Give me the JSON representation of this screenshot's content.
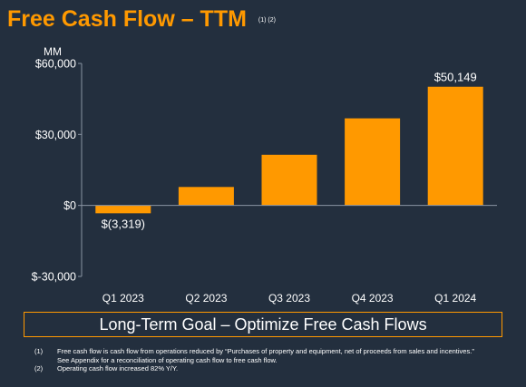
{
  "header": {
    "title": "Free Cash Flow – TTM",
    "title_note": "(1) (2)"
  },
  "chart_data": {
    "type": "bar",
    "unit_label": "MM",
    "categories": [
      "Q1 2023",
      "Q2 2023",
      "Q3 2023",
      "Q4 2023",
      "Q1 2024"
    ],
    "values": [
      -3319,
      7800,
      21400,
      36800,
      50149
    ],
    "data_labels": [
      "$(3,319)",
      "",
      "",
      "",
      "$50,149"
    ],
    "ylim": [
      -30000,
      60000
    ],
    "yticks": [
      {
        "value": 60000,
        "label": "$60,000"
      },
      {
        "value": 30000,
        "label": "$30,000"
      },
      {
        "value": 0,
        "label": "$0"
      },
      {
        "value": -30000,
        "label": "$-30,000"
      }
    ],
    "bar_color": "#ff9900",
    "grid": false,
    "legend": "none"
  },
  "goal": {
    "text": "Long-Term Goal – Optimize Free Cash Flows"
  },
  "footnotes": [
    {
      "num": "(1)",
      "lines": [
        "Free cash flow is cash flow from operations reduced by “Purchases of property and equipment, net of proceeds from sales and incentives.”",
        "See Appendix for a reconciliation of operating cash flow to free cash flow."
      ]
    },
    {
      "num": "(2)",
      "lines": [
        "Operating cash flow increased 82% Y/Y."
      ]
    }
  ],
  "colors": {
    "background": "#232f3e",
    "accent": "#ff9900",
    "axis": "#8a94a3"
  }
}
